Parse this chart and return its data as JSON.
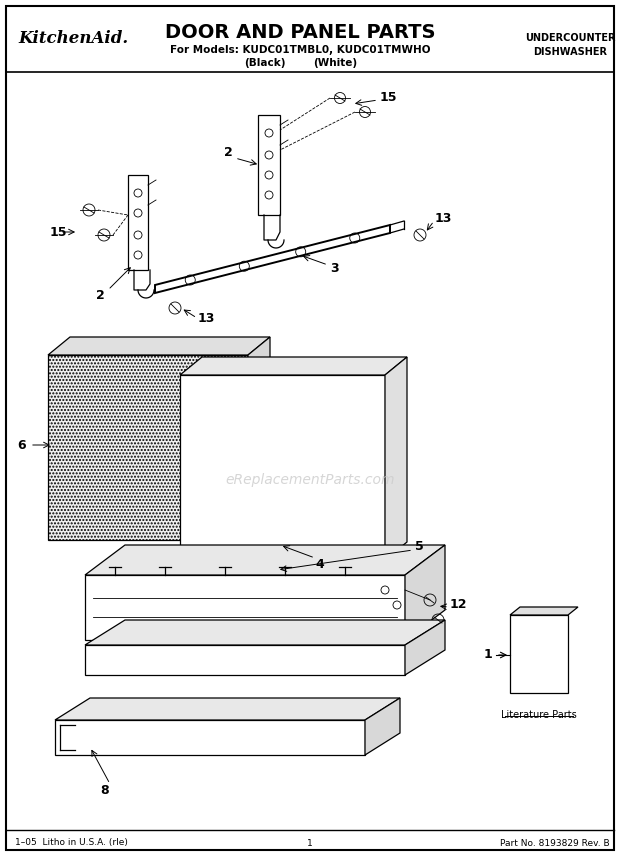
{
  "title": "DOOR AND PANEL PARTS",
  "brand": "KitchenAid.",
  "subtitle_line1": "For Models: KUDC01TMBL0, KUDC01TMWHO",
  "subtitle_line2_left": "(Black)",
  "subtitle_line2_right": "(White)",
  "top_right_line1": "UNDERCOUNTER",
  "top_right_line2": "DISHWASHER",
  "footer_left": "1–05  Litho in U.S.A. (rle)",
  "footer_center": "1",
  "footer_right": "Part No. 8193829 Rev. B",
  "watermark": "eReplacementParts.com",
  "bg_color": "#ffffff",
  "border_color": "#000000"
}
